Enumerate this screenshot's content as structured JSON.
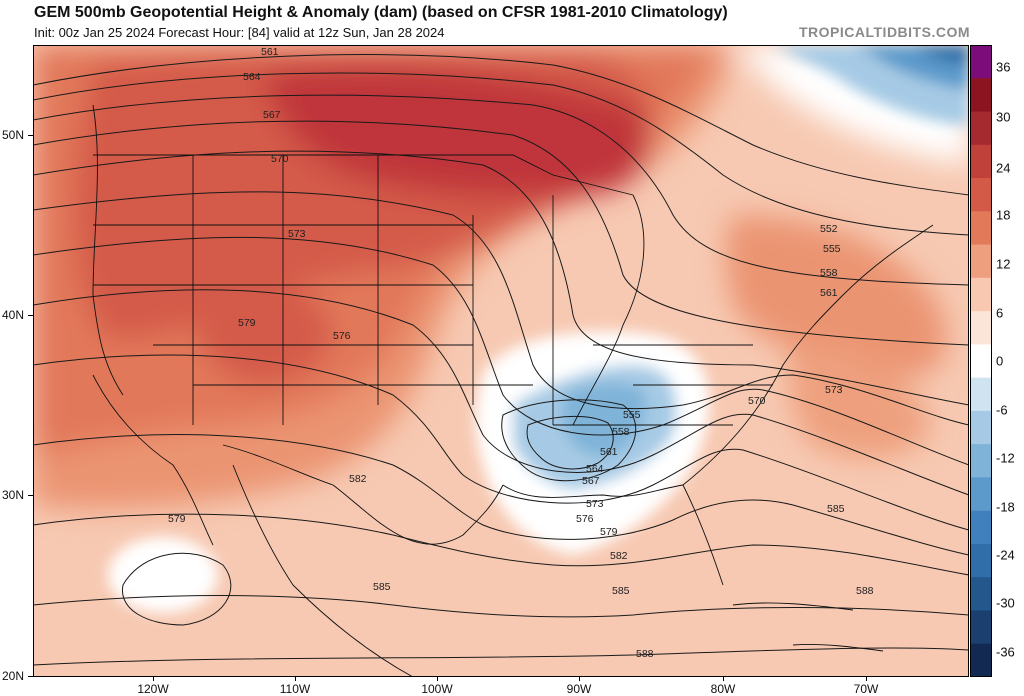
{
  "title": "GEM 500mb Geopotential Height & Anomaly (dam) (based on CFSR 1981-2010 Climatology)",
  "subtitle": "Init: 00z Jan 25 2024   Forecast Hour: [84]   valid at 12z Sun, Jan 28 2024",
  "watermark": "TROPICALTIDBITS.COM",
  "map": {
    "latitude_labels": [
      "50N",
      "40N",
      "30N",
      "20N"
    ],
    "longitude_labels": [
      "120W",
      "110W",
      "100W",
      "90W",
      "80W",
      "70W"
    ],
    "contour_labels": [
      "561",
      "564",
      "567",
      "570",
      "573",
      "579",
      "576",
      "582",
      "579",
      "585",
      "552",
      "555",
      "558",
      "561",
      "570",
      "573",
      "555",
      "558",
      "561",
      "564",
      "567",
      "573",
      "576",
      "579",
      "582",
      "585",
      "585",
      "588",
      "588"
    ],
    "colors": {
      "strong_positive": "#c0343a",
      "positive": "#e27a5a",
      "weak_positive": "#f9d1bc",
      "neutral": "#ffffff",
      "negative": "#7fb3d8",
      "strong_negative": "#2f6ea8"
    }
  },
  "colorbar": {
    "labels": [
      "36",
      "30",
      "24",
      "18",
      "12",
      "6",
      "0",
      "-6",
      "-12",
      "-18",
      "-24",
      "-30",
      "-36"
    ],
    "colors": [
      "#7b0c7a",
      "#8c1420",
      "#a52a2f",
      "#c0403a",
      "#d45a48",
      "#e27a5a",
      "#eea07e",
      "#f8c9b0",
      "#fbe4d8",
      "#ffffff",
      "#cfe3f1",
      "#a6cae5",
      "#7fb3d8",
      "#5b9acb",
      "#3f80bd",
      "#2f6ea8",
      "#24578c",
      "#1b3f6f",
      "#122a52"
    ]
  }
}
